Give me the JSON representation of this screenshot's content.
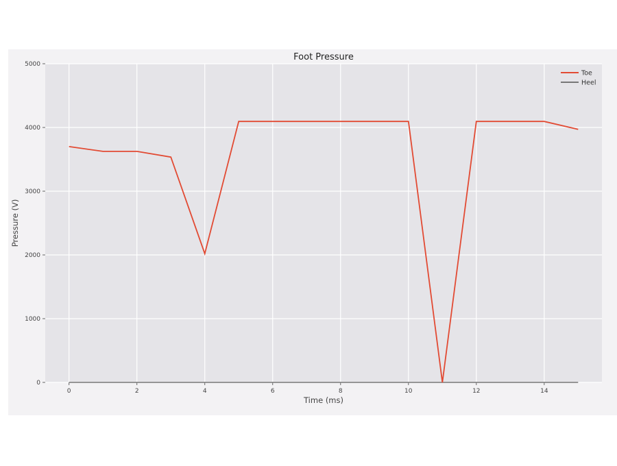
{
  "chart_data": {
    "type": "line",
    "title": "Foot Pressure",
    "xlabel": "Time (ms)",
    "ylabel": "Pressure (V)",
    "xlim": [
      -0.7,
      15.7
    ],
    "ylim": [
      0,
      5000
    ],
    "xticks": [
      0,
      2,
      4,
      6,
      8,
      10,
      12,
      14
    ],
    "yticks": [
      0,
      1000,
      2000,
      3000,
      4000,
      5000
    ],
    "grid": true,
    "legend": "top-right",
    "x": [
      0,
      1,
      2,
      3,
      4,
      5,
      6,
      7,
      8,
      9,
      10,
      11,
      12,
      13,
      14,
      15
    ],
    "series": [
      {
        "name": "Toe",
        "color": "#e24a33",
        "values": [
          3700,
          3625,
          3625,
          3535,
          2020,
          4095,
          4095,
          4095,
          4095,
          4095,
          4095,
          0,
          4095,
          4095,
          4095,
          3970
        ]
      },
      {
        "name": "Heel",
        "color": "#777777",
        "values": [
          0,
          0,
          0,
          0,
          0,
          0,
          0,
          0,
          0,
          0,
          0,
          0,
          0,
          0,
          0,
          0
        ]
      }
    ]
  }
}
